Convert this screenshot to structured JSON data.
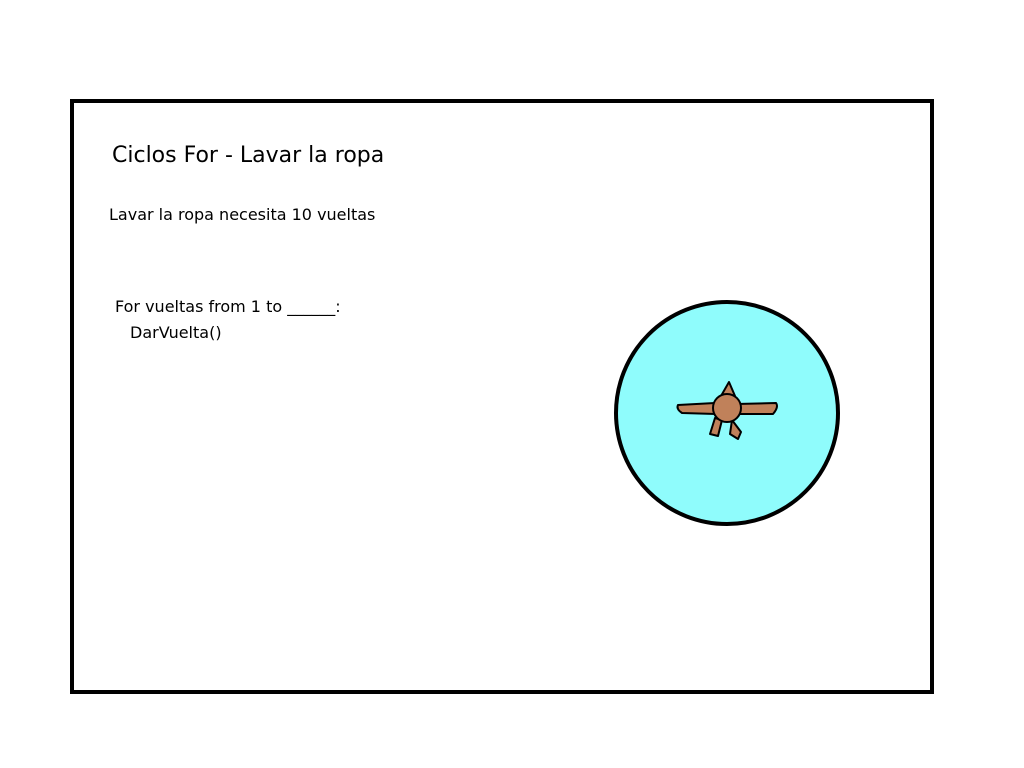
{
  "title": "Ciclos For - Lavar la ropa",
  "subtitle": "Lavar la ropa necesita 10 vueltas",
  "code": {
    "line1": "For vueltas from 1 to ______:",
    "line2": "DarVuelta()"
  },
  "colors": {
    "water": "#8ffcfc",
    "agitator": "#c0815a",
    "outline": "#000000"
  },
  "icons": {
    "washer": "washing-machine-drum-icon",
    "agitator": "agitator-icon"
  }
}
